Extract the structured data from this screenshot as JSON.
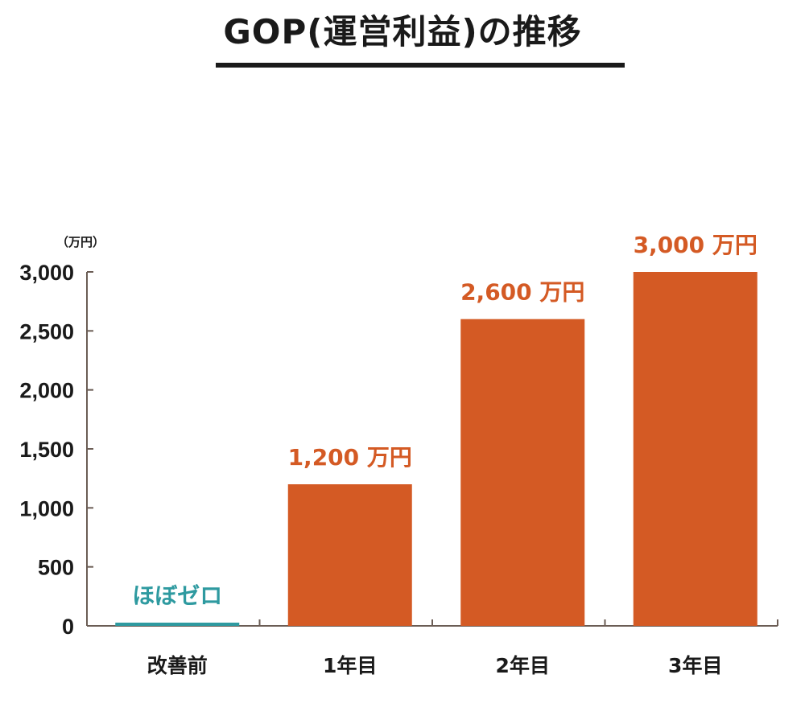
{
  "chart_data": {
    "type": "bar",
    "title": "GOP(運営利益)の推移",
    "unit": "（万円）",
    "categories": [
      "改善前",
      "1年目",
      "2年目",
      "3年目"
    ],
    "values": [
      0,
      1200,
      2600,
      3000
    ],
    "data_labels": [
      "ほぼゼロ",
      "1,200 万円",
      "2,600 万円",
      "3,000 万円"
    ],
    "ylim": [
      0,
      3000
    ],
    "yticks": [
      0,
      500,
      1000,
      1500,
      2000,
      2500,
      3000
    ],
    "ytick_labels": [
      "0",
      "500",
      "1,000",
      "1,500",
      "2,000",
      "2,500",
      "3,000"
    ],
    "grid": false,
    "colors": {
      "bar": "#D45A24",
      "zero_bar": "#2E9AA0",
      "axis": "#6b5d55",
      "text": "#1a1a1a"
    }
  }
}
